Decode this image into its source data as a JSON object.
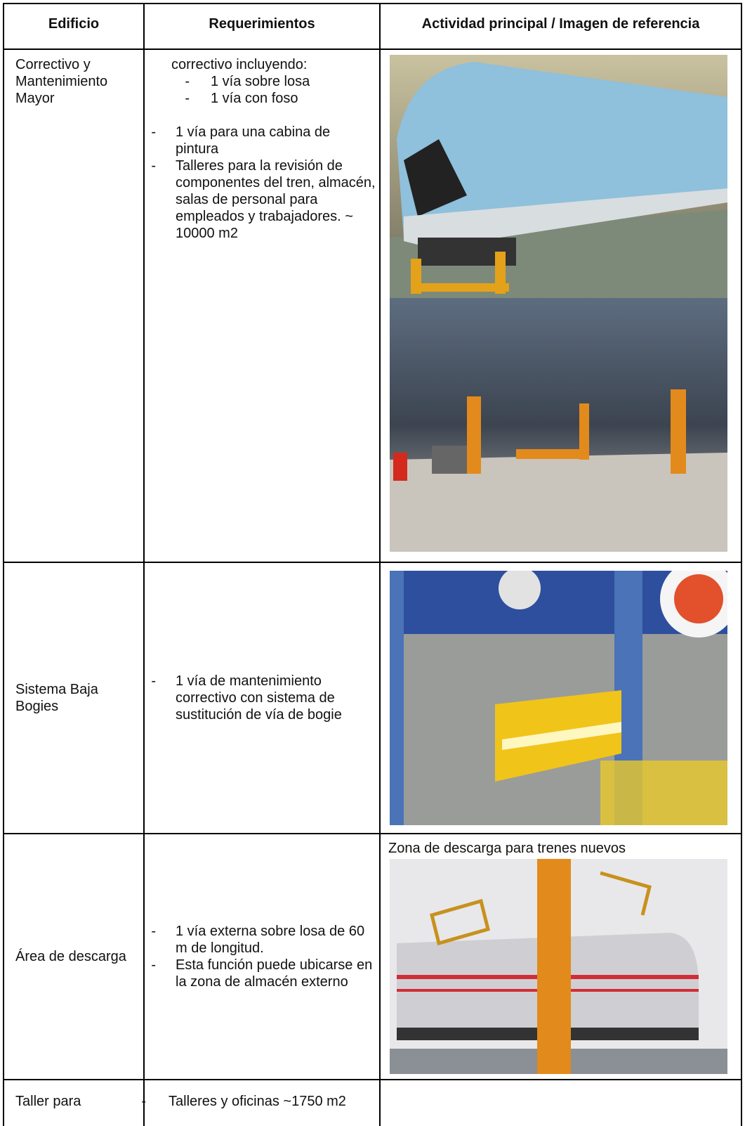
{
  "header": [
    "Edificio",
    "Requerimientos",
    "Actividad principal / Imagen de referencia"
  ],
  "rows": [
    {
      "building": "Correctivo y Mantenimiento Mayor",
      "intro": "correctivo incluyendo:",
      "subitems": [
        "1 vía sobre losa",
        "1 vía con foso"
      ],
      "items": [
        "1 vía para una cabina de pintura",
        "Talleres para la revisión de componentes del tren, almacén, salas de personal para empleados y trabajadores. ~ 10000 m2"
      ]
    },
    {
      "building": "Sistema Baja Bogies",
      "items": [
        "1 vía de mantenimiento correctivo con sistema de sustitución de vía de bogie"
      ]
    },
    {
      "building": "Área de descarga",
      "items": [
        "1 vía externa sobre losa de 60 m de longitud.",
        "Esta función puede ubicarse en la zona de almacén externo"
      ],
      "caption": "Zona de descarga para trenes nuevos"
    },
    {
      "building": "Taller para",
      "items": [
        "Talleres y oficinas ~1750 m2"
      ]
    }
  ]
}
